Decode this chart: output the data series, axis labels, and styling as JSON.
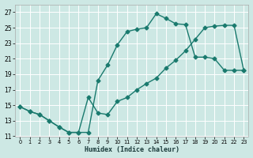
{
  "title": "",
  "xlabel": "Humidex (Indice chaleur)",
  "bg_color": "#cde8e4",
  "grid_color": "#ffffff",
  "line_color": "#1a7a6e",
  "marker": "D",
  "markersize": 2.5,
  "linewidth": 1.0,
  "xlim": [
    -0.5,
    23.5
  ],
  "ylim": [
    11,
    28
  ],
  "xticks": [
    0,
    1,
    2,
    3,
    4,
    5,
    6,
    7,
    8,
    9,
    10,
    11,
    12,
    13,
    14,
    15,
    16,
    17,
    18,
    19,
    20,
    21,
    22,
    23
  ],
  "yticks": [
    11,
    13,
    15,
    17,
    19,
    21,
    23,
    25,
    27
  ],
  "upper_x": [
    0,
    1,
    2,
    3,
    4,
    5,
    6,
    7,
    8,
    9,
    10,
    11,
    12,
    13,
    14,
    15,
    16,
    17,
    18,
    19,
    20,
    21,
    22,
    23
  ],
  "upper_y": [
    14.8,
    14.2,
    13.8,
    13.0,
    12.2,
    11.5,
    11.5,
    11.5,
    18.2,
    20.2,
    22.8,
    24.5,
    24.8,
    25.0,
    26.8,
    26.2,
    25.5,
    25.4,
    21.2,
    21.2,
    21.0,
    19.5,
    19.5,
    19.5
  ],
  "lower_x": [
    0,
    1,
    2,
    3,
    4,
    5,
    6,
    7,
    8,
    9,
    10,
    11,
    12,
    13,
    14,
    15,
    16,
    17,
    18,
    19,
    20,
    21,
    22,
    23
  ],
  "lower_y": [
    14.8,
    14.2,
    13.8,
    13.0,
    12.2,
    11.5,
    11.5,
    16.0,
    14.0,
    13.8,
    15.5,
    16.0,
    17.0,
    17.8,
    18.5,
    19.8,
    20.8,
    22.0,
    23.5,
    25.0,
    25.2,
    25.3,
    25.3,
    19.5
  ]
}
